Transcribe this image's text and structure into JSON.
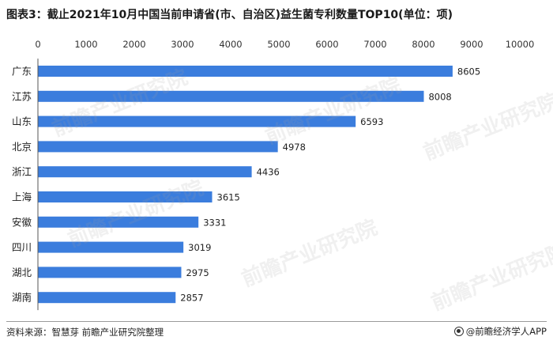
{
  "title": "图表3：截止2021年10月中国当前申请省(市、自治区)益生菌专利数量TOP10(单位：项)",
  "source": "资料来源：智慧芽 前瞻产业研究院整理",
  "brand": "@前瞻经济学人APP",
  "watermark": "前瞻产业研究院",
  "colors": {
    "bar": "#3b7ddd",
    "grid": "#d9d9d9",
    "axis": "#555555"
  },
  "chart_data": {
    "type": "bar",
    "orientation": "horizontal",
    "categories": [
      "广东",
      "江苏",
      "山东",
      "北京",
      "浙江",
      "上海",
      "安徽",
      "四川",
      "湖北",
      "湖南"
    ],
    "values": [
      8605,
      8008,
      6593,
      4978,
      4436,
      3615,
      3331,
      3019,
      2975,
      2857
    ],
    "x_ticks": [
      0,
      1000,
      2000,
      3000,
      4000,
      5000,
      6000,
      7000,
      8000,
      9000,
      10000
    ],
    "xlim": [
      0,
      10000
    ],
    "axis_position": "top",
    "grid": false,
    "data_labels": true
  }
}
